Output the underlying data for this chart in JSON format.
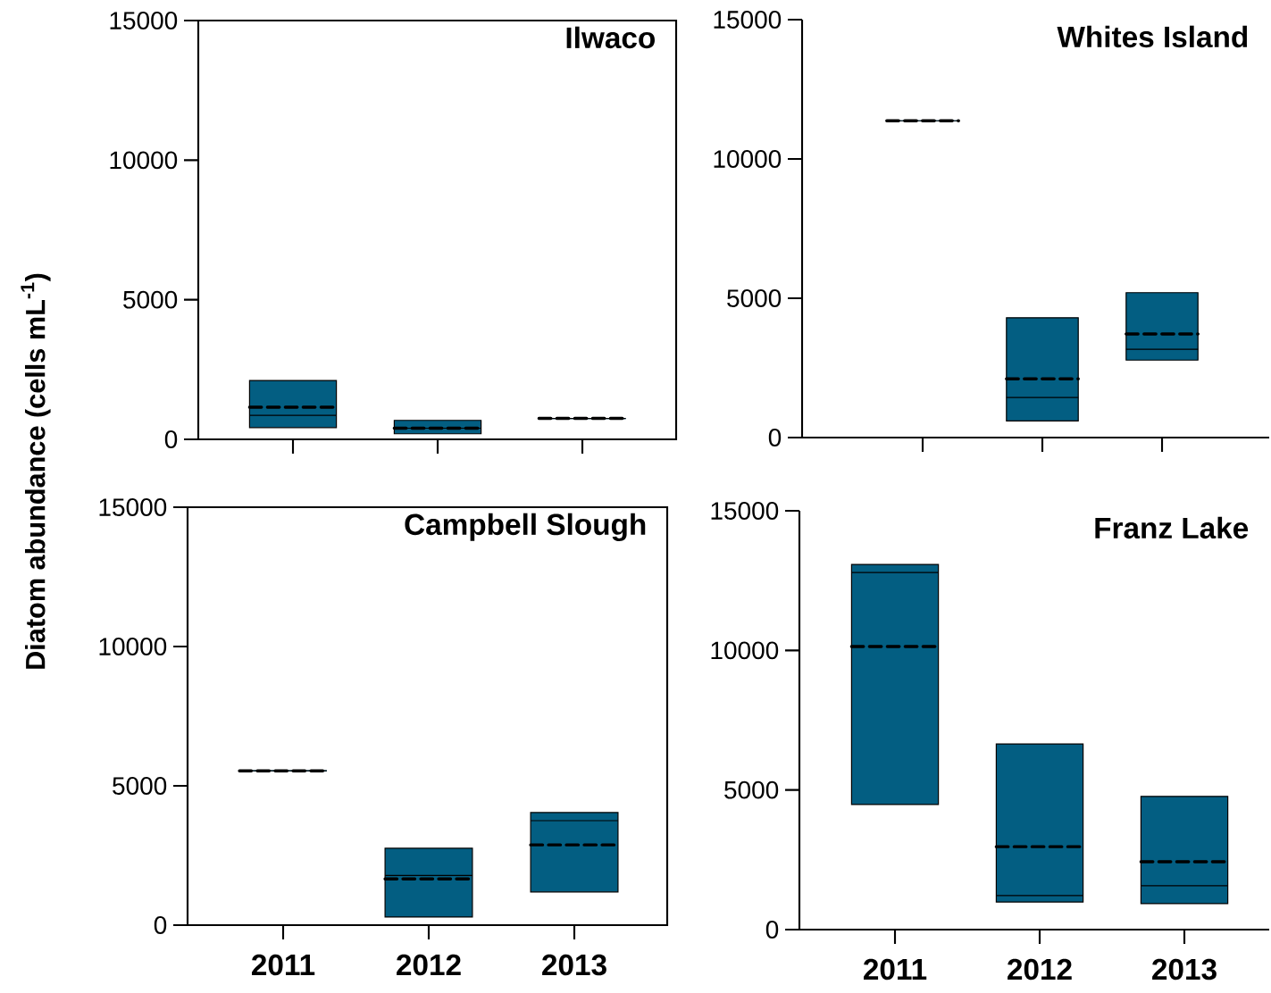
{
  "chart_data": [
    {
      "type": "box",
      "title": "Ilwaco",
      "ylabel": "Diatom abundance (cells mL$^{-1}$)",
      "categories": [
        "2011",
        "2012",
        "2013"
      ],
      "ylim": [
        0,
        15000
      ],
      "yticks": [
        0,
        5000,
        10000,
        15000
      ],
      "tick_labels": "y",
      "color": "#035e82",
      "boxes": [
        {
          "low": 420,
          "q1": 420,
          "median": 860,
          "q3": 2110,
          "high": 2110,
          "mean": 1150
        },
        {
          "low": 200,
          "q1": 200,
          "median": 400,
          "q3": 680,
          "high": 680,
          "mean": 400
        },
        {
          "low": 750,
          "q1": 750,
          "median": 750,
          "q3": 750,
          "high": 750,
          "mean": 750
        }
      ]
    },
    {
      "type": "box",
      "title": "Whites Island",
      "categories": [
        "2011",
        "2012",
        "2013"
      ],
      "ylim": [
        0,
        15000
      ],
      "yticks": [
        0,
        5000,
        10000,
        15000
      ],
      "tick_labels": "y",
      "color": "#035e82",
      "boxes": [
        {
          "low": 11370,
          "q1": 11370,
          "median": 11370,
          "q3": 11370,
          "high": 11370,
          "mean": 11370
        },
        {
          "low": 600,
          "q1": 600,
          "median": 1440,
          "q3": 4300,
          "high": 4300,
          "mean": 2110
        },
        {
          "low": 2780,
          "q1": 2780,
          "median": 3170,
          "q3": 5200,
          "high": 5200,
          "mean": 3720
        }
      ]
    },
    {
      "type": "box",
      "title": "Campbell Slough",
      "categories": [
        "2011",
        "2012",
        "2013"
      ],
      "ylim": [
        0,
        15000
      ],
      "yticks": [
        0,
        5000,
        10000,
        15000
      ],
      "color": "#035e82",
      "boxes": [
        {
          "low": 5540,
          "q1": 5540,
          "median": 5540,
          "q3": 5540,
          "high": 5540,
          "mean": 5540
        },
        {
          "low": 290,
          "q1": 290,
          "median": 1780,
          "q3": 2760,
          "high": 2760,
          "mean": 1660
        },
        {
          "low": 1190,
          "q1": 1190,
          "median": 3750,
          "q3": 4040,
          "high": 4040,
          "mean": 2880
        }
      ]
    },
    {
      "type": "box",
      "title": "Franz Lake",
      "categories": [
        "2011",
        "2012",
        "2013"
      ],
      "ylim": [
        0,
        15000
      ],
      "yticks": [
        0,
        5000,
        10000,
        15000
      ],
      "color": "#035e82",
      "boxes": [
        {
          "low": 4480,
          "q1": 4480,
          "median": 12790,
          "q3": 13080,
          "high": 13080,
          "mean": 10140
        },
        {
          "low": 990,
          "q1": 990,
          "median": 1220,
          "q3": 6650,
          "high": 6650,
          "mean": 2970
        },
        {
          "low": 930,
          "q1": 930,
          "median": 1570,
          "q3": 4770,
          "high": 4770,
          "mean": 2430
        }
      ]
    }
  ]
}
